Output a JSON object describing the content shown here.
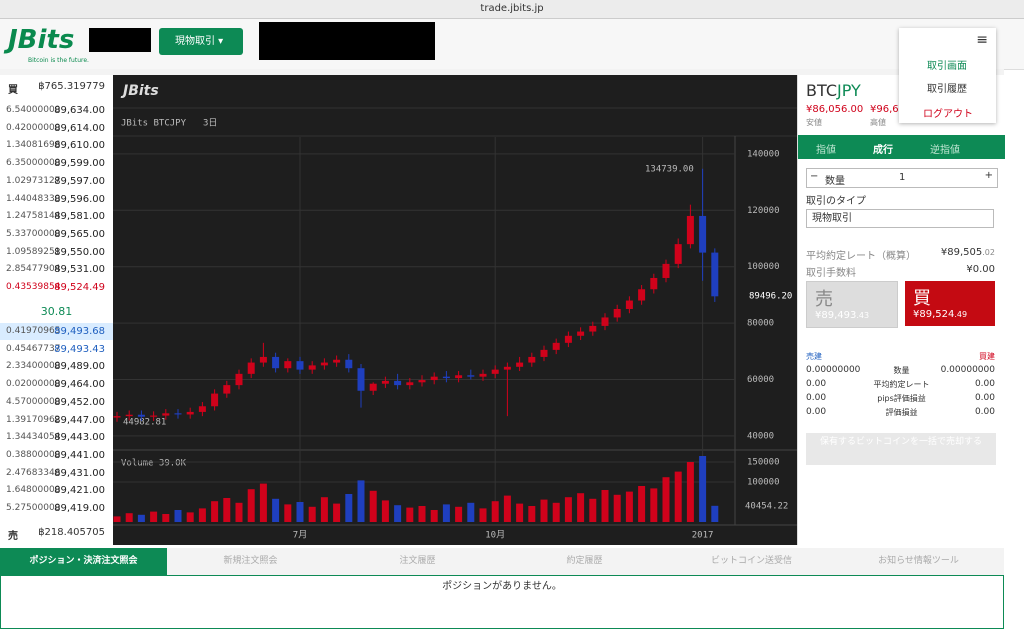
{
  "browser": {
    "url": "trade.jbits.jp"
  },
  "header": {
    "logo": "JBits",
    "logo_sub": "Bitcoin is the future.",
    "mode_button": "現物取引",
    "menu": [
      "取引画面",
      "取引履歴",
      "ログアウト"
    ]
  },
  "order_book": {
    "buy_label": "買",
    "buy_total": "฿765.319779",
    "sell_label": "売",
    "sell_total": "฿218.405705",
    "spread": "30.81",
    "asks": [
      [
        "6.54000000",
        "89,634.00"
      ],
      [
        "0.42000000",
        "89,614.00"
      ],
      [
        "1.34081696",
        "89,610.00"
      ],
      [
        "6.35000000",
        "89,599.00"
      ],
      [
        "1.02973127",
        "89,597.00"
      ],
      [
        "1.44048330",
        "89,596.00"
      ],
      [
        "1.24758144",
        "89,581.00"
      ],
      [
        "5.33700000",
        "89,565.00"
      ],
      [
        "1.09589251",
        "89,550.00"
      ],
      [
        "2.85477904",
        "89,531.00"
      ],
      [
        "0.43539854",
        "89,524.49"
      ]
    ],
    "bids": [
      [
        "0.41970965",
        "89,493.68"
      ],
      [
        "0.45467737",
        "89,493.43"
      ],
      [
        "2.33400000",
        "89,489.00"
      ],
      [
        "0.02000000",
        "89,464.00"
      ],
      [
        "4.57000000",
        "89,452.00"
      ],
      [
        "1.39170962",
        "89,447.00"
      ],
      [
        "1.34434054",
        "89,443.00"
      ],
      [
        "0.38800000",
        "89,441.00"
      ],
      [
        "2.47683346",
        "89,431.00"
      ],
      [
        "1.64800000",
        "89,421.00"
      ],
      [
        "5.27500000",
        "89,419.00"
      ]
    ]
  },
  "chart_data": {
    "type": "candlestick",
    "logo": "JBits",
    "symbol": "JBits BTCJPY",
    "interval": "3日",
    "volume_title": "Volume 39.0K",
    "categories": [
      null,
      null,
      null,
      null,
      null,
      null,
      null,
      null,
      null,
      null,
      null,
      null,
      null,
      null,
      null,
      "7月",
      null,
      null,
      null,
      null,
      null,
      null,
      null,
      null,
      null,
      null,
      null,
      null,
      null,
      null,
      null,
      "10月",
      null,
      null,
      null,
      null,
      null,
      null,
      null,
      null,
      null,
      null,
      null,
      null,
      null,
      null,
      null,
      null,
      "2017",
      null
    ],
    "open": [
      46500,
      47000,
      47500,
      46800,
      47200,
      48000,
      47600,
      48500,
      50500,
      55000,
      58000,
      62000,
      66000,
      68000,
      64000,
      66500,
      63500,
      65000,
      66000,
      67000,
      64000,
      56000,
      58500,
      59500,
      58000,
      59000,
      59800,
      61000,
      60500,
      61500,
      61000,
      62000,
      63500,
      64500,
      66000,
      68000,
      70500,
      73000,
      75500,
      77000,
      79000,
      82000,
      85000,
      88000,
      92000,
      96000,
      101000,
      108000,
      118000,
      105000
    ],
    "high": [
      48500,
      49000,
      49000,
      48700,
      49500,
      49500,
      50000,
      52000,
      56500,
      59500,
      63500,
      67500,
      73000,
      69500,
      67500,
      68000,
      66500,
      67500,
      68500,
      69000,
      65500,
      59000,
      61000,
      62000,
      60500,
      61500,
      62500,
      63000,
      63000,
      63500,
      63500,
      65000,
      66000,
      68000,
      69500,
      72000,
      74500,
      77000,
      78500,
      80500,
      83500,
      86500,
      89500,
      93500,
      97500,
      102500,
      110000,
      122000,
      134739,
      106500
    ],
    "low": [
      45000,
      45500,
      45300,
      45300,
      45700,
      46100,
      46100,
      47000,
      49000,
      53500,
      56500,
      60500,
      64500,
      62500,
      62500,
      62000,
      62000,
      63500,
      64500,
      62500,
      50000,
      54500,
      57000,
      56500,
      56500,
      57500,
      58300,
      59000,
      59000,
      60000,
      59500,
      60500,
      47000,
      63000,
      64500,
      66500,
      69000,
      71500,
      74000,
      75500,
      77500,
      80500,
      83500,
      86500,
      90500,
      94500,
      99500,
      106500,
      95000,
      87500
    ],
    "close": [
      47000,
      47500,
      46800,
      47200,
      48000,
      47600,
      48500,
      50500,
      55000,
      58000,
      62000,
      66000,
      68000,
      64000,
      66500,
      63500,
      65000,
      66000,
      67000,
      64000,
      56000,
      58500,
      59500,
      58000,
      59000,
      59800,
      61000,
      60500,
      61500,
      61000,
      62000,
      63500,
      64500,
      66000,
      68000,
      70500,
      73000,
      75500,
      77000,
      79000,
      82000,
      85000,
      88000,
      92000,
      96000,
      101000,
      108000,
      118000,
      105000,
      89496
    ],
    "volume": [
      14000,
      22000,
      18000,
      26000,
      20000,
      30000,
      24000,
      34000,
      52000,
      60000,
      48000,
      82000,
      96000,
      58000,
      44000,
      50000,
      38000,
      62000,
      46000,
      70000,
      104000,
      78000,
      54000,
      42000,
      36000,
      40000,
      30000,
      44000,
      38000,
      48000,
      34000,
      52000,
      66000,
      46000,
      40000,
      56000,
      48000,
      62000,
      72000,
      58000,
      80000,
      68000,
      76000,
      90000,
      84000,
      112000,
      126000,
      150000,
      165000,
      40454
    ],
    "ylim": [
      35700,
      146000
    ],
    "yticks": [
      40000,
      60000,
      80000,
      100000,
      120000,
      140000
    ],
    "vol_ylim": [
      0,
      180000
    ],
    "vol_yticks": [
      100000,
      150000
    ],
    "annotations": {
      "high": "134739.00",
      "last": "89496.20",
      "low": "44982.81",
      "vol_last": "40454.22"
    },
    "up_color": "#d0021b",
    "down_color": "#1f3fbf"
  },
  "trade_panel": {
    "pair_a": "BTC",
    "pair_b": "JPY",
    "low_value": "¥86,056.00",
    "low_label": "安値",
    "high_value": "¥96,6",
    "high_label": "高値",
    "tabs": [
      "指値",
      "成行",
      "逆指値"
    ],
    "qty_label": "数量",
    "qty": "1",
    "type_label": "取引のタイプ",
    "type_value": "現物取引",
    "rate_label": "平均約定レート（概算）",
    "rate": "¥89,505",
    "rate_dec": ".02",
    "fee_label": "取引手数料",
    "fee": "¥0.00",
    "sell": "売",
    "sell_price": "¥89,493",
    "sell_dec": ".43",
    "buy": "買",
    "buy_price": "¥89,524",
    "buy_dec": ".49",
    "short_label": "売建",
    "long_label": "買建",
    "rows": [
      [
        "0.00000000",
        "数量",
        "0.00000000"
      ],
      [
        "0.00",
        "平均約定レート",
        "0.00"
      ],
      [
        "0.00",
        "pips評価損益",
        "0.00"
      ],
      [
        "0.00",
        "評価損益",
        "0.00"
      ]
    ],
    "sell_all": "保有するビットコインを一括で売却する"
  },
  "bottom": {
    "tabs": [
      "ポジション・決済注文照会",
      "新規注文照会",
      "注文履歴",
      "約定履歴",
      "ビットコイン送受信",
      "お知らせ情報ツール"
    ],
    "empty": "ポジションがありません。"
  }
}
